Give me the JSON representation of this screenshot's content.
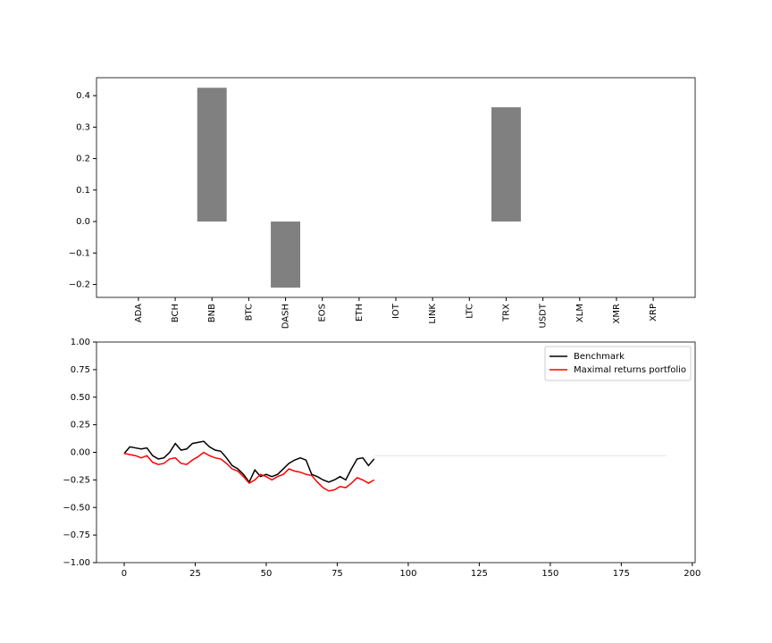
{
  "chart_data": [
    {
      "type": "bar",
      "categories": [
        "ADA",
        "BCH",
        "BNB",
        "BTC",
        "DASH",
        "EOS",
        "ETH",
        "IOT",
        "LINK",
        "LTC",
        "TRX",
        "USDT",
        "XLM",
        "XMR",
        "XRP"
      ],
      "values": [
        0,
        0,
        0.425,
        0,
        -0.21,
        0,
        0,
        0,
        0,
        0,
        0.363,
        0,
        0,
        0,
        0
      ],
      "color": "#808080",
      "ylim": [
        -0.241,
        0.457
      ],
      "yticks": [
        {
          "value": -0.2,
          "label": "−0.2"
        },
        {
          "value": -0.1,
          "label": "−0.1"
        },
        {
          "value": 0,
          "label": "0.0"
        },
        0.1,
        0.2,
        0.3,
        0.4
      ],
      "grid": false
    },
    {
      "type": "line",
      "x": [
        0,
        2,
        4,
        6,
        8,
        10,
        12,
        14,
        16,
        18,
        20,
        22,
        24,
        26,
        28,
        30,
        32,
        34,
        36,
        38,
        40,
        42,
        44,
        46,
        48,
        50,
        52,
        54,
        56,
        58,
        60,
        62,
        64,
        66,
        68,
        70,
        72,
        74,
        76,
        78,
        80,
        82,
        84,
        86,
        88
      ],
      "series": [
        {
          "name": "Benchmark",
          "color": "#000000",
          "values": [
            -0.01,
            0.05,
            0.04,
            0.03,
            0.04,
            -0.03,
            -0.06,
            -0.05,
            0.0,
            0.08,
            0.02,
            0.03,
            0.08,
            0.09,
            0.1,
            0.05,
            0.02,
            0.01,
            -0.05,
            -0.12,
            -0.15,
            -0.2,
            -0.27,
            -0.16,
            -0.22,
            -0.2,
            -0.22,
            -0.2,
            -0.15,
            -0.1,
            -0.07,
            -0.05,
            -0.07,
            -0.2,
            -0.22,
            -0.25,
            -0.27,
            -0.25,
            -0.22,
            -0.25,
            -0.15,
            -0.06,
            -0.05,
            -0.12,
            -0.06
          ]
        },
        {
          "name": "Maximal returns portfolio",
          "color": "#ff0000",
          "values": [
            -0.01,
            -0.02,
            -0.03,
            -0.05,
            -0.03,
            -0.09,
            -0.11,
            -0.1,
            -0.06,
            -0.05,
            -0.1,
            -0.11,
            -0.07,
            -0.04,
            0.0,
            -0.03,
            -0.05,
            -0.06,
            -0.1,
            -0.15,
            -0.17,
            -0.22,
            -0.28,
            -0.25,
            -0.2,
            -0.22,
            -0.25,
            -0.22,
            -0.2,
            -0.15,
            -0.17,
            -0.18,
            -0.2,
            -0.21,
            -0.27,
            -0.32,
            -0.35,
            -0.34,
            -0.31,
            -0.32,
            -0.28,
            -0.23,
            -0.25,
            -0.28,
            -0.25
          ]
        },
        {
          "color": "#eeeeee",
          "x": [
            88,
            191
          ],
          "values": [
            -0.03,
            -0.03
          ]
        }
      ],
      "xlim": [
        -9.75,
        201
      ],
      "xticks": [
        0,
        25,
        50,
        75,
        100,
        125,
        150,
        175,
        200
      ],
      "ylim": [
        -1,
        1
      ],
      "yticks": [
        {
          "value": -1,
          "label": "−1.00"
        },
        {
          "value": -0.75,
          "label": "−0.75"
        },
        {
          "value": -0.5,
          "label": "−0.50"
        },
        {
          "value": -0.25,
          "label": "−0.25"
        },
        {
          "value": 0,
          "label": "0.00"
        },
        {
          "value": 0.25,
          "label": "0.25"
        },
        {
          "value": 0.5,
          "label": "0.50"
        },
        {
          "value": 0.75,
          "label": "0.75"
        },
        {
          "value": 1,
          "label": "1.00"
        }
      ],
      "legend": "upper right",
      "grid": false
    }
  ]
}
